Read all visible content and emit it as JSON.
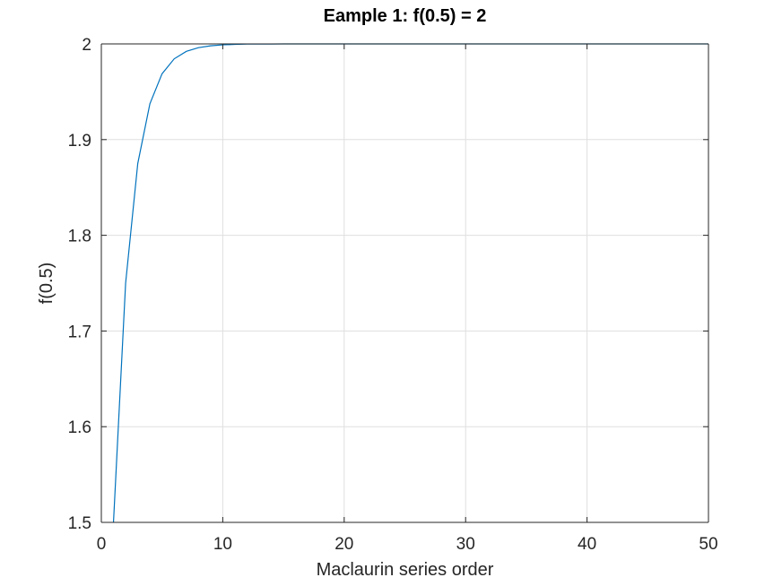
{
  "chart_data": {
    "type": "line",
    "title": "Eample 1: f(0.5) = 2",
    "xlabel": "Maclaurin series order",
    "ylabel": "f(0.5)",
    "xlim": [
      0,
      50
    ],
    "ylim": [
      1.5,
      2
    ],
    "xticks": [
      "0",
      "10",
      "20",
      "30",
      "40",
      "50"
    ],
    "yticks": [
      "1.5",
      "1.6",
      "1.7",
      "1.8",
      "1.9",
      "2"
    ],
    "grid": true,
    "series": [
      {
        "color": "#0072bd",
        "style": "solid",
        "x": [
          1,
          2,
          3,
          4,
          5,
          6,
          7,
          8,
          9,
          10,
          11,
          12,
          13,
          14,
          15,
          16,
          17,
          18,
          19,
          20,
          21,
          22,
          23,
          24,
          25,
          26,
          27,
          28,
          29,
          30,
          31,
          32,
          33,
          34,
          35,
          36,
          37,
          38,
          39,
          40,
          41,
          42,
          43,
          44,
          45,
          46,
          47,
          48,
          49,
          50
        ],
        "y": [
          1.5,
          1.75,
          1.875,
          1.9375,
          1.9688,
          1.9844,
          1.9922,
          1.9961,
          1.998,
          1.999,
          1.9995,
          1.9998,
          1.9999,
          1.9999,
          2.0,
          2.0,
          2.0,
          2.0,
          2.0,
          2.0,
          2.0,
          2.0,
          2.0,
          2.0,
          2.0,
          2.0,
          2.0,
          2.0,
          2.0,
          2.0,
          2.0,
          2.0,
          2.0,
          2.0,
          2.0,
          2.0,
          2.0,
          2.0,
          2.0,
          2.0,
          2.0,
          2.0,
          2.0,
          2.0,
          2.0,
          2.0,
          2.0,
          2.0,
          2.0,
          2.0
        ]
      },
      {
        "color": "#d95319",
        "style": "dotted",
        "x": [
          0,
          50
        ],
        "y": [
          2,
          2
        ]
      }
    ]
  }
}
